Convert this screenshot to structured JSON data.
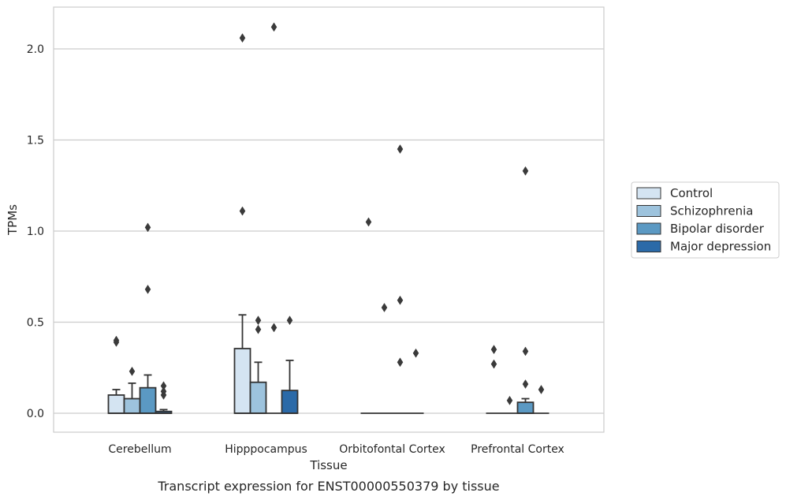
{
  "chart_data": {
    "type": "box",
    "xlabel": "Tissue",
    "ylabel": "TPMs",
    "caption": "Transcript expression for ENST00000550379 by tissue",
    "ylim": [
      -0.1,
      2.24
    ],
    "yticks": [
      0.0,
      0.5,
      1.0,
      1.5,
      2.0
    ],
    "ytick_labels": [
      "0.0",
      "0.5",
      "1.0",
      "1.5",
      "2.0"
    ],
    "grid": "horizontal",
    "legend_placement": "right",
    "categories": [
      "Cerebellum",
      "Hipppocampus",
      "Orbitofontal Cortex",
      "Prefrontal Cortex"
    ],
    "series": [
      {
        "name": "Control",
        "color": "#d4e4f2",
        "boxes": [
          {
            "q1": 0.0,
            "q3": 0.1,
            "median": 0.0,
            "whisker_low": 0.0,
            "whisker_high": 0.13,
            "outliers": [
              0.39,
              0.4
            ]
          },
          {
            "q1": 0.0,
            "q3": 0.355,
            "median": 0.0,
            "whisker_low": 0.0,
            "whisker_high": 0.54,
            "outliers": [
              1.11,
              2.06
            ]
          },
          {
            "q1": 0.0,
            "q3": 0.0,
            "median": 0.0,
            "whisker_low": 0.0,
            "whisker_high": 0.0,
            "outliers": [
              1.05
            ]
          },
          {
            "q1": 0.0,
            "q3": 0.0,
            "median": 0.0,
            "whisker_low": 0.0,
            "whisker_high": 0.0,
            "outliers": [
              0.27,
              0.35
            ]
          }
        ]
      },
      {
        "name": "Schizophrenia",
        "color": "#9dc3dd",
        "boxes": [
          {
            "q1": 0.0,
            "q3": 0.08,
            "median": 0.0,
            "whisker_low": 0.0,
            "whisker_high": 0.165,
            "outliers": [
              0.23
            ]
          },
          {
            "q1": 0.0,
            "q3": 0.17,
            "median": 0.0,
            "whisker_low": 0.0,
            "whisker_high": 0.28,
            "outliers": [
              0.46,
              0.51
            ]
          },
          {
            "q1": 0.0,
            "q3": 0.0,
            "median": 0.0,
            "whisker_low": 0.0,
            "whisker_high": 0.0,
            "outliers": [
              0.58
            ]
          },
          {
            "q1": 0.0,
            "q3": 0.0,
            "median": 0.0,
            "whisker_low": 0.0,
            "whisker_high": 0.0,
            "outliers": [
              0.07
            ]
          }
        ]
      },
      {
        "name": "Bipolar disorder",
        "color": "#5b99c3",
        "boxes": [
          {
            "q1": 0.0,
            "q3": 0.14,
            "median": 0.0,
            "whisker_low": 0.0,
            "whisker_high": 0.21,
            "outliers": [
              0.68,
              1.02
            ]
          },
          {
            "q1": 0.0,
            "q3": 0.0,
            "median": 0.0,
            "whisker_low": 0.0,
            "whisker_high": 0.0,
            "outliers": [
              0.47,
              2.12
            ]
          },
          {
            "q1": 0.0,
            "q3": 0.0,
            "median": 0.0,
            "whisker_low": 0.0,
            "whisker_high": 0.0,
            "outliers": [
              0.28,
              0.62,
              1.45
            ]
          },
          {
            "q1": 0.0,
            "q3": 0.06,
            "median": 0.0,
            "whisker_low": 0.0,
            "whisker_high": 0.08,
            "outliers": [
              0.16,
              0.34,
              1.33
            ]
          }
        ]
      },
      {
        "name": "Major depression",
        "color": "#2b6aa8",
        "boxes": [
          {
            "q1": 0.0,
            "q3": 0.01,
            "median": 0.0,
            "whisker_low": 0.0,
            "whisker_high": 0.02,
            "outliers": [
              0.1,
              0.12,
              0.15
            ]
          },
          {
            "q1": 0.0,
            "q3": 0.125,
            "median": 0.0,
            "whisker_low": 0.0,
            "whisker_high": 0.29,
            "outliers": [
              0.51
            ]
          },
          {
            "q1": 0.0,
            "q3": 0.0,
            "median": 0.0,
            "whisker_low": 0.0,
            "whisker_high": 0.0,
            "outliers": [
              0.33
            ]
          },
          {
            "q1": 0.0,
            "q3": 0.0,
            "median": 0.0,
            "whisker_low": 0.0,
            "whisker_high": 0.0,
            "outliers": [
              0.13
            ]
          }
        ]
      }
    ],
    "colors": {
      "grid": "#cccccc",
      "frame": "#cccccc",
      "edge": "#333333",
      "text": "#262626",
      "legend_border": "#cccccc"
    }
  }
}
